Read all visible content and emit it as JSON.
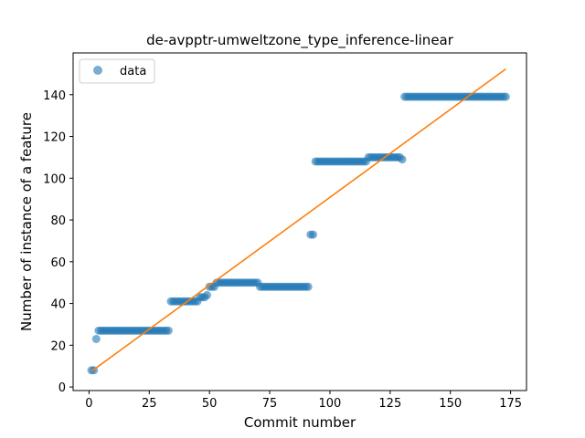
{
  "chart_data": {
    "type": "scatter",
    "title": "de-avpptr-umweltzone_type_inference-linear",
    "xlabel": "Commit number",
    "ylabel": "Number of instance of a feature",
    "xlim": [
      -6.6,
      181.6
    ],
    "ylim": [
      -1.7,
      160.0
    ],
    "xticks": [
      0,
      25,
      50,
      75,
      100,
      125,
      150,
      175
    ],
    "yticks": [
      0,
      20,
      40,
      60,
      80,
      100,
      120,
      140
    ],
    "grid": false,
    "legend": {
      "placement": "top-left",
      "entries": [
        "data"
      ]
    },
    "colors": {
      "points": "#1f77b4",
      "fit_line": "#ff7f0e"
    },
    "series": [
      {
        "name": "data",
        "kind": "scatter",
        "x": [
          1,
          2,
          3,
          4,
          5,
          6,
          7,
          8,
          9,
          10,
          11,
          12,
          13,
          14,
          15,
          16,
          17,
          18,
          19,
          20,
          21,
          22,
          23,
          24,
          25,
          26,
          27,
          28,
          29,
          30,
          31,
          32,
          33,
          34,
          35,
          36,
          37,
          38,
          39,
          40,
          41,
          42,
          43,
          44,
          45,
          46,
          47,
          48,
          49,
          50,
          51,
          52,
          53,
          54,
          55,
          56,
          57,
          58,
          59,
          60,
          61,
          62,
          63,
          64,
          65,
          66,
          67,
          68,
          69,
          70,
          71,
          72,
          73,
          74,
          75,
          76,
          77,
          78,
          79,
          80,
          81,
          82,
          83,
          84,
          85,
          86,
          87,
          88,
          89,
          90,
          91,
          92,
          93,
          94,
          95,
          96,
          97,
          98,
          99,
          100,
          101,
          102,
          103,
          104,
          105,
          106,
          107,
          108,
          109,
          110,
          111,
          112,
          113,
          114,
          115,
          116,
          117,
          118,
          119,
          120,
          121,
          122,
          123,
          124,
          125,
          126,
          127,
          128,
          129,
          130,
          131,
          132,
          133,
          134,
          135,
          136,
          137,
          138,
          139,
          140,
          141,
          142,
          143,
          144,
          145,
          146,
          147,
          148,
          149,
          150,
          151,
          152,
          153,
          154,
          155,
          156,
          157,
          158,
          159,
          160,
          161,
          162,
          163,
          164,
          165,
          166,
          167,
          168,
          169,
          170,
          171,
          172,
          173
        ],
        "y": [
          8,
          8,
          23,
          27,
          27,
          27,
          27,
          27,
          27,
          27,
          27,
          27,
          27,
          27,
          27,
          27,
          27,
          27,
          27,
          27,
          27,
          27,
          27,
          27,
          27,
          27,
          27,
          27,
          27,
          27,
          27,
          27,
          27,
          41,
          41,
          41,
          41,
          41,
          41,
          41,
          41,
          41,
          41,
          41,
          41,
          43,
          43,
          43,
          44,
          48,
          48,
          48,
          50,
          50,
          50,
          50,
          50,
          50,
          50,
          50,
          50,
          50,
          50,
          50,
          50,
          50,
          50,
          50,
          50,
          50,
          48,
          48,
          48,
          48,
          48,
          48,
          48,
          48,
          48,
          48,
          48,
          48,
          48,
          48,
          48,
          48,
          48,
          48,
          48,
          48,
          48,
          73,
          73,
          108,
          108,
          108,
          108,
          108,
          108,
          108,
          108,
          108,
          108,
          108,
          108,
          108,
          108,
          108,
          108,
          108,
          108,
          108,
          108,
          108,
          108,
          110,
          110,
          110,
          110,
          110,
          110,
          110,
          110,
          110,
          110,
          110,
          110,
          110,
          110,
          109,
          139,
          139,
          139,
          139,
          139,
          139,
          139,
          139,
          139,
          139,
          139,
          139,
          139,
          139,
          139,
          139,
          139,
          139,
          139,
          139,
          139,
          139,
          139,
          139,
          139,
          139,
          139,
          139,
          139,
          139,
          139,
          139,
          139,
          139,
          139,
          139,
          139,
          139,
          139,
          139,
          139,
          139,
          139
        ]
      },
      {
        "kind": "line",
        "x": [
          1,
          173
        ],
        "y": [
          7.5,
          152.3
        ]
      }
    ]
  }
}
